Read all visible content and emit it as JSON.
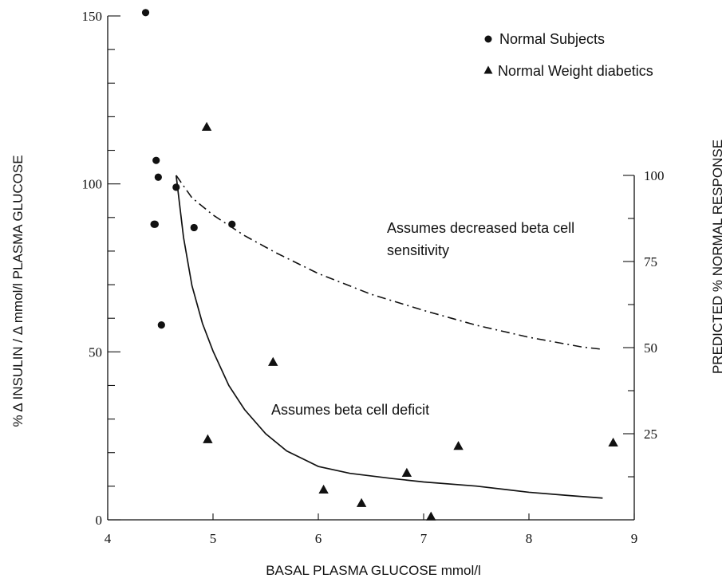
{
  "chart_data": {
    "type": "scatter",
    "x_axis": {
      "label": "BASAL PLASMA GLUCOSE mmol/l",
      "range": [
        4,
        9
      ],
      "ticks": [
        4,
        5,
        6,
        7,
        8,
        9
      ],
      "tick_labels": [
        "4",
        "5",
        "6",
        "7",
        "8",
        "9"
      ]
    },
    "y_axis_left": {
      "label": "% Δ INSULIN / Δ mmol/l PLASMA GLUCOSE",
      "range": [
        0,
        150
      ],
      "ticks": [
        0,
        50,
        100,
        150
      ],
      "tick_labels": [
        "0",
        "50",
        "100",
        "150"
      ]
    },
    "y_axis_right": {
      "label": "PREDICTED % NORMAL RESPONSE",
      "range": [
        0,
        100
      ],
      "ticks": [
        25,
        50,
        75,
        100
      ],
      "tick_labels": [
        "25",
        "50",
        "75",
        "100"
      ]
    },
    "legend": {
      "placement": "top-right",
      "entries": [
        {
          "label": "Normal Subjects",
          "marker": "circle"
        },
        {
          "label": "Normal Weight diabetics",
          "marker": "triangle"
        }
      ]
    },
    "series": [
      {
        "name": "Normal Subjects",
        "marker": "circle",
        "x": [
          4.36,
          4.46,
          4.48,
          4.44,
          4.45,
          4.51,
          4.65,
          4.82,
          5.18
        ],
        "y": [
          151,
          107,
          102,
          88,
          88,
          58,
          99,
          87,
          88
        ]
      },
      {
        "name": "Normal Weight diabetics",
        "marker": "triangle",
        "x": [
          4.94,
          4.95,
          5.57,
          6.05,
          6.41,
          6.84,
          7.07,
          7.33,
          8.8
        ],
        "y": [
          117,
          24,
          47,
          9,
          5,
          14,
          1,
          22,
          23
        ]
      }
    ],
    "curves": [
      {
        "style": "dash-dot",
        "axis": "right",
        "x": [
          4.65,
          4.8,
          5.0,
          5.3,
          5.6,
          6.0,
          6.5,
          7.0,
          7.5,
          8.0,
          8.5,
          8.7
        ],
        "y": [
          100,
          93.5,
          88.5,
          82.5,
          77.5,
          71.5,
          65.5,
          60.8,
          56.5,
          53,
          50.2,
          49.5
        ]
      },
      {
        "style": "solid",
        "axis": "right",
        "x": [
          4.65,
          4.72,
          4.8,
          4.9,
          5.0,
          5.15,
          5.3,
          5.5,
          5.7,
          6.0,
          6.3,
          6.7,
          7.0,
          7.5,
          8.0,
          8.4,
          8.7
        ],
        "y": [
          100,
          82,
          68,
          57,
          49,
          39,
          32,
          25,
          20,
          15.5,
          13.5,
          12,
          11,
          9.8,
          8,
          7,
          6.3
        ]
      }
    ],
    "annotations": [
      {
        "text_lines": [
          "Assumes decreased beta cell",
          "sensitivity"
        ]
      },
      {
        "text_lines": [
          "Assumes beta cell deficit"
        ]
      }
    ]
  }
}
